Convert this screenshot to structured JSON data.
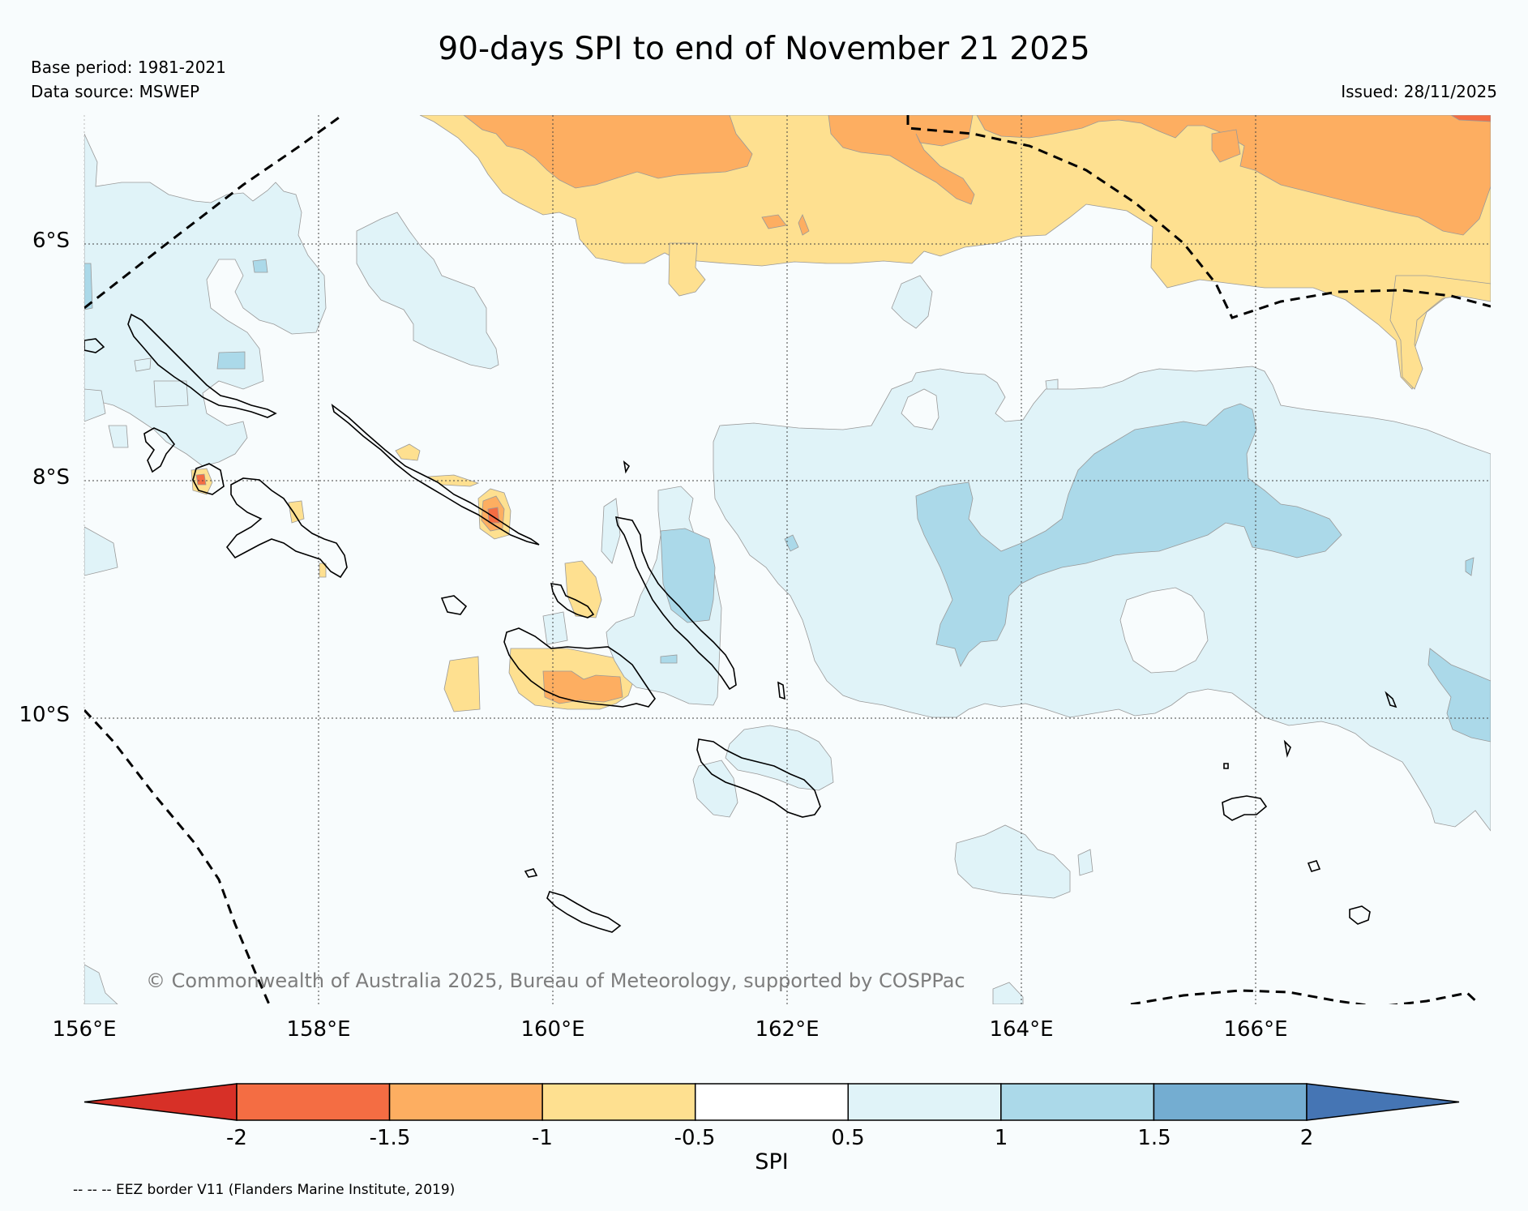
{
  "title": "90-days SPI to end of November 21 2025",
  "base_period": "Base period: 1981-2021",
  "data_source": "Data source: MSWEP",
  "issued": "Issued: 28/11/2025",
  "copyright": "© Commonwealth of Australia 2025, Bureau of Meteorology, supported by COSPPac",
  "lat_labels": [
    "6°S",
    "8°S",
    "10°S"
  ],
  "lon_labels": [
    "156°E",
    "158°E",
    "160°E",
    "162°E",
    "164°E",
    "166°E"
  ],
  "colorbar": {
    "label": "SPI",
    "ticks": [
      "-2",
      "-1.5",
      "-1",
      "-0.5",
      "0.5",
      "1",
      "1.5",
      "2"
    ],
    "colors": [
      "#d73027",
      "#f46d43",
      "#fdae61",
      "#fee090",
      "#ffffff",
      "#e0f3f8",
      "#abd9e9",
      "#74add1",
      "#4575b4"
    ]
  },
  "legend_note": "-- -- -- EEZ border V11 (Flanders Marine Institute, 2019)",
  "colors": {
    "background": "#f8fcfd",
    "dry_moderate": "#fee090",
    "dry_strong": "#fdae61",
    "dry_severe": "#f46d43",
    "wet_light": "#e0f3f8",
    "wet_moderate": "#abd9e9"
  }
}
